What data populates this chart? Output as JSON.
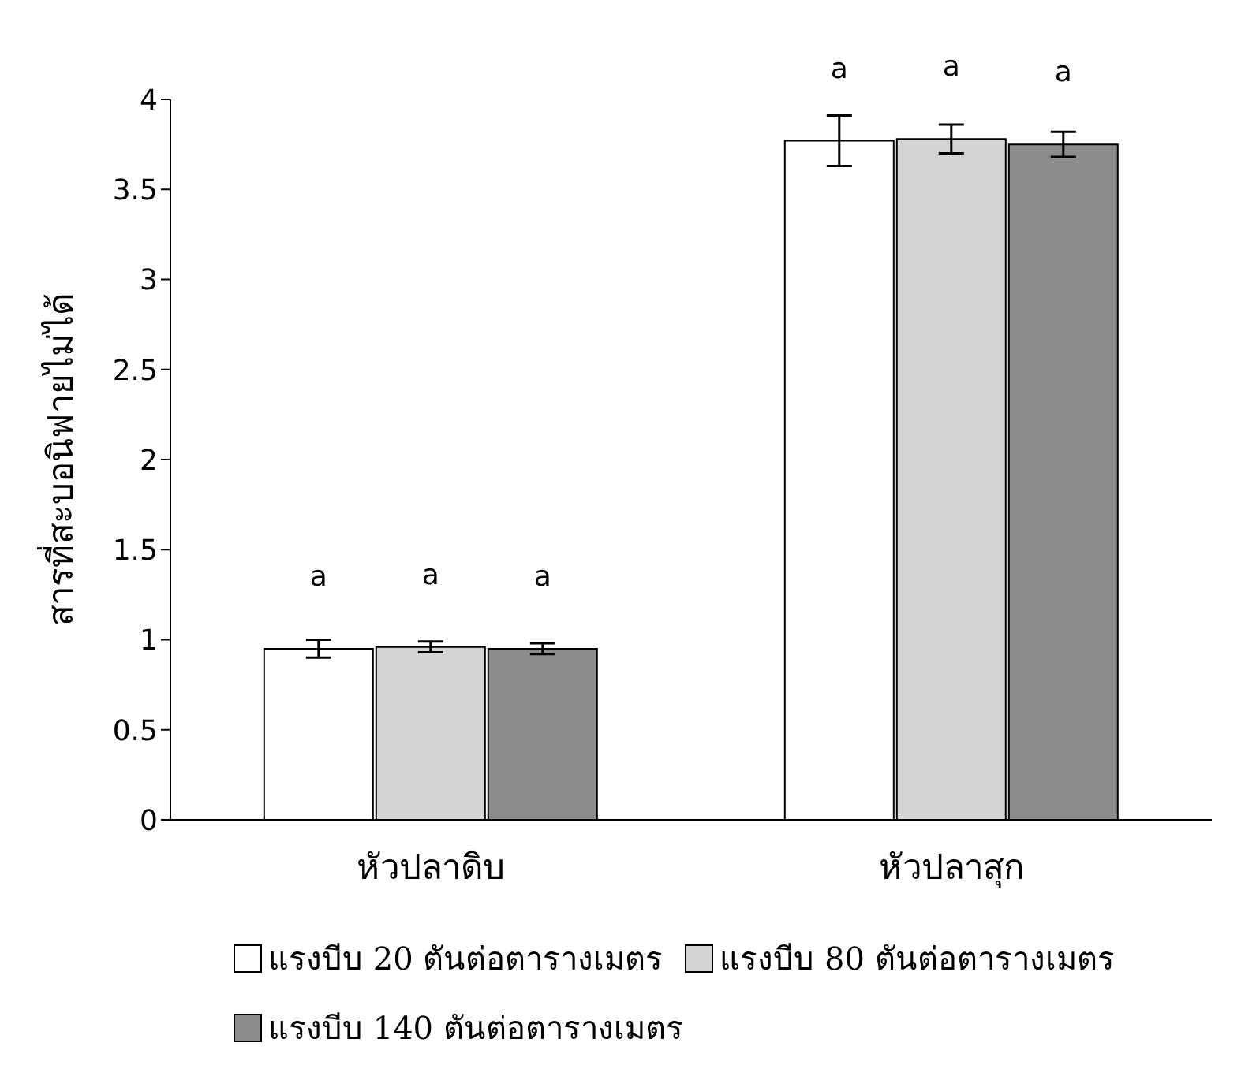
{
  "chart_data": {
    "type": "bar",
    "ylabel": "สารที่สะบอนิฟายไม่ได้",
    "categories": [
      "หัวปลาดิบ",
      "หัวปลาสุก"
    ],
    "series": [
      {
        "name": "แรงบีบ 20 ตันต่อตารางเมตร",
        "color": "#ffffff",
        "values": [
          0.95,
          3.77
        ],
        "errors": [
          0.05,
          0.14
        ],
        "value_labels": [
          "a",
          "a"
        ]
      },
      {
        "name": "แรงบีบ 80 ตันต่อตารางเมตร",
        "color": "#d4d4d4",
        "values": [
          0.96,
          3.78
        ],
        "errors": [
          0.03,
          0.08
        ],
        "value_labels": [
          "a",
          "a"
        ]
      },
      {
        "name": "แรงบีบ 140 ตันต่อตารางเมตร",
        "color": "#8c8c8c",
        "values": [
          0.95,
          3.75
        ],
        "errors": [
          0.03,
          0.07
        ],
        "value_labels": [
          "a",
          "a"
        ]
      }
    ],
    "ylim": [
      0,
      4
    ],
    "yticks": [
      0,
      0.5,
      1,
      1.5,
      2,
      2.5,
      3,
      3.5,
      4
    ],
    "grid": false,
    "legend": "bottom"
  }
}
